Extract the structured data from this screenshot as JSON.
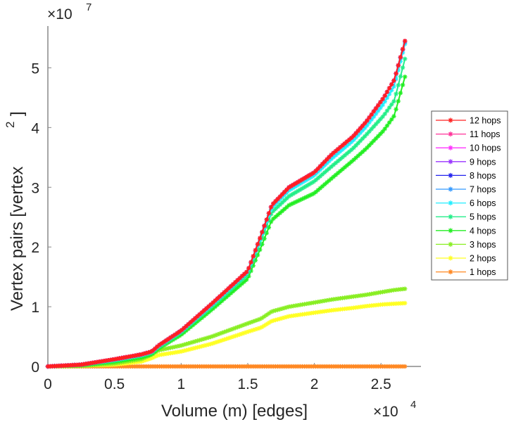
{
  "chart_data": {
    "type": "line",
    "title": "",
    "xlabel": "Volume (m) [edges]",
    "ylabel": "Vertex pairs [vertex",
    "ylabel_sup": "2",
    "ylabel_close": "]",
    "x_multiplier": "×10",
    "x_multiplier_exp": "4",
    "y_multiplier": "×10",
    "y_multiplier_exp": "7",
    "xlim": [
      0,
      2.8
    ],
    "ylim": [
      0,
      5.7
    ],
    "x_units_note": "x values in units of 1e4 edges",
    "y_units_note": "y values in units of 1e7",
    "xticks": [
      0,
      0.5,
      1,
      1.5,
      2,
      2.5
    ],
    "xtick_labels": [
      "0",
      "0.5",
      "1",
      "1.5",
      "2",
      "2.5"
    ],
    "yticks": [
      0,
      1,
      2,
      3,
      4,
      5
    ],
    "ytick_labels": [
      "0",
      "1",
      "2",
      "3",
      "4",
      "5"
    ],
    "grid": false,
    "legend_position": "right",
    "x": [
      0,
      0.25,
      0.5,
      0.7,
      0.78,
      0.83,
      1.0,
      1.23,
      1.5,
      1.6,
      1.68,
      1.81,
      2.0,
      2.13,
      2.29,
      2.39,
      2.52,
      2.6,
      2.68
    ],
    "series": [
      {
        "name": "12 hops",
        "color": "#ff2020",
        "values": [
          0,
          0.03,
          0.12,
          0.2,
          0.25,
          0.35,
          0.6,
          1.05,
          1.6,
          2.2,
          2.7,
          3.0,
          3.25,
          3.55,
          3.85,
          4.1,
          4.5,
          4.8,
          5.45
        ]
      },
      {
        "name": "11 hops",
        "color": "#ff3399",
        "values": [
          0,
          0.03,
          0.12,
          0.2,
          0.25,
          0.35,
          0.6,
          1.05,
          1.6,
          2.2,
          2.7,
          3.0,
          3.25,
          3.55,
          3.85,
          4.1,
          4.5,
          4.8,
          5.45
        ]
      },
      {
        "name": "10 hops",
        "color": "#ff33ff",
        "values": [
          0,
          0.03,
          0.12,
          0.2,
          0.25,
          0.35,
          0.6,
          1.05,
          1.6,
          2.2,
          2.7,
          3.0,
          3.25,
          3.55,
          3.85,
          4.1,
          4.5,
          4.8,
          5.45
        ]
      },
      {
        "name": "9 hops",
        "color": "#9933ff",
        "values": [
          0,
          0.03,
          0.12,
          0.2,
          0.25,
          0.35,
          0.6,
          1.05,
          1.6,
          2.2,
          2.7,
          3.0,
          3.25,
          3.55,
          3.85,
          4.1,
          4.5,
          4.8,
          5.45
        ]
      },
      {
        "name": "8 hops",
        "color": "#2222ee",
        "values": [
          0,
          0.03,
          0.12,
          0.2,
          0.25,
          0.35,
          0.6,
          1.05,
          1.6,
          2.2,
          2.7,
          3.0,
          3.25,
          3.55,
          3.85,
          4.1,
          4.5,
          4.8,
          5.45
        ]
      },
      {
        "name": "7 hops",
        "color": "#3399ff",
        "values": [
          0,
          0.03,
          0.12,
          0.2,
          0.25,
          0.35,
          0.6,
          1.05,
          1.6,
          2.2,
          2.7,
          3.0,
          3.25,
          3.55,
          3.85,
          4.1,
          4.5,
          4.8,
          5.43
        ]
      },
      {
        "name": "6 hops",
        "color": "#22eeff",
        "values": [
          0,
          0.03,
          0.11,
          0.19,
          0.24,
          0.34,
          0.59,
          1.03,
          1.58,
          2.17,
          2.66,
          2.95,
          3.2,
          3.48,
          3.78,
          4.02,
          4.4,
          4.7,
          5.4
        ]
      },
      {
        "name": "5 hops",
        "color": "#22ee88",
        "values": [
          0,
          0.03,
          0.1,
          0.18,
          0.23,
          0.32,
          0.57,
          1.0,
          1.54,
          2.1,
          2.58,
          2.85,
          3.1,
          3.35,
          3.65,
          3.88,
          4.2,
          4.45,
          5.15
        ]
      },
      {
        "name": "4 hops",
        "color": "#22ee22",
        "values": [
          0,
          0.02,
          0.08,
          0.15,
          0.2,
          0.3,
          0.53,
          0.95,
          1.47,
          2.0,
          2.45,
          2.7,
          2.9,
          3.15,
          3.45,
          3.65,
          3.95,
          4.2,
          4.85
        ]
      },
      {
        "name": "3 hops",
        "color": "#88ee22",
        "values": [
          0,
          0.01,
          0.05,
          0.12,
          0.2,
          0.27,
          0.35,
          0.5,
          0.72,
          0.8,
          0.92,
          1.0,
          1.07,
          1.12,
          1.17,
          1.2,
          1.25,
          1.28,
          1.3
        ]
      },
      {
        "name": "2 hops",
        "color": "#ffff22",
        "values": [
          0,
          0.01,
          0.03,
          0.08,
          0.14,
          0.19,
          0.25,
          0.38,
          0.58,
          0.65,
          0.76,
          0.84,
          0.9,
          0.94,
          0.98,
          1.01,
          1.04,
          1.05,
          1.06
        ]
      },
      {
        "name": "1 hops",
        "color": "#ff8822",
        "values": [
          0,
          0,
          0,
          0,
          0,
          0,
          0,
          0,
          0,
          0,
          0,
          0,
          0,
          0,
          0,
          0,
          0,
          0,
          0
        ]
      }
    ]
  }
}
